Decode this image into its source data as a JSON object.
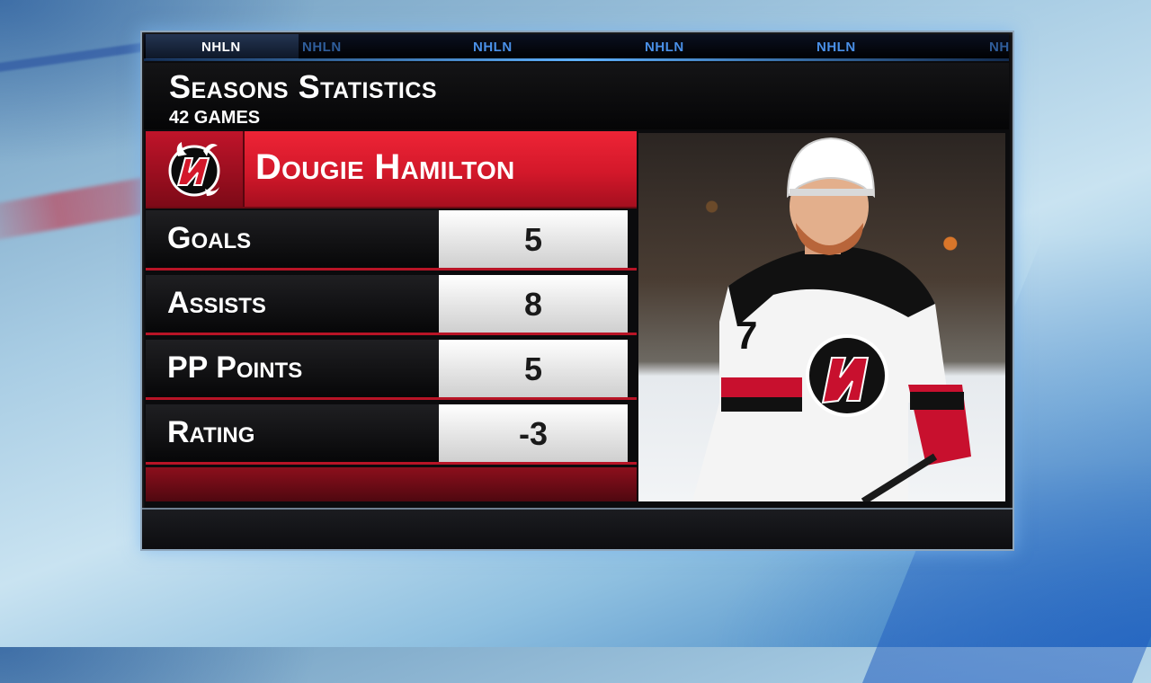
{
  "ticker": {
    "items": [
      "NHLN",
      "NHLN",
      "NHLN",
      "NHLN",
      "NHLN",
      "NH"
    ]
  },
  "header": {
    "title": "Seasons Statistics",
    "subtitle": "42 GAMES"
  },
  "player": {
    "name": "Dougie Hamilton",
    "team_logo": "devils-logo-icon",
    "jersey_number": "7"
  },
  "stats": [
    {
      "label": "Goals",
      "value": "5"
    },
    {
      "label": "Assists",
      "value": "8"
    },
    {
      "label": "PP Points",
      "value": "5"
    },
    {
      "label": "Rating",
      "value": "-3"
    }
  ],
  "colors": {
    "team_red": "#d3182a",
    "ticker_blue": "#5fb2ff"
  }
}
